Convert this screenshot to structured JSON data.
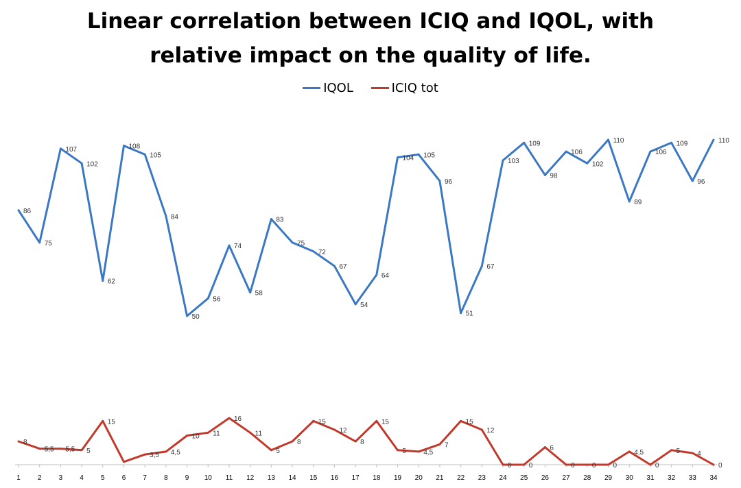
{
  "chart_data": {
    "type": "line",
    "title_line1": "Linear correlation between ICIQ and IQOL, with",
    "title_line2": "relative impact on the quality of life.",
    "categories": [
      "1",
      "2",
      "3",
      "4",
      "5",
      "6",
      "7",
      "8",
      "9",
      "10",
      "11",
      "12",
      "13",
      "14",
      "15",
      "16",
      "17",
      "18",
      "19",
      "20",
      "21",
      "22",
      "23",
      "24",
      "25",
      "26",
      "27",
      "28",
      "29",
      "30",
      "31",
      "32",
      "33",
      "34"
    ],
    "series": [
      {
        "name": "IQOL",
        "color": "#3b78c4",
        "values": [
          86,
          75,
          107,
          102,
          62,
          108,
          105,
          84,
          50,
          56,
          74,
          58,
          83,
          75,
          72,
          67,
          54,
          64,
          104,
          105,
          96,
          51,
          67,
          103,
          109,
          98,
          106,
          102,
          110,
          89,
          106,
          109,
          96,
          110
        ],
        "labels": [
          "86",
          "75",
          "107",
          "102",
          "62",
          "108",
          "105",
          "84",
          "50",
          "56",
          "74",
          "58",
          "83",
          "75",
          "72",
          "67",
          "54",
          "64",
          "104",
          "105",
          "96",
          "51",
          "67",
          "103",
          "109",
          "98",
          "106",
          "102",
          "110",
          "89",
          "106",
          "109",
          "96",
          "110"
        ]
      },
      {
        "name": "ICIQ tot",
        "color": "#c0392b",
        "values": [
          8,
          5.5,
          5.5,
          5,
          15,
          1,
          3.5,
          4.5,
          10,
          11,
          16,
          11,
          5,
          8,
          15,
          12,
          8,
          15,
          5,
          4.5,
          7,
          15,
          12,
          0,
          0,
          6,
          0,
          0,
          0,
          4.5,
          0,
          5,
          4,
          0
        ],
        "labels": [
          "8",
          "5,5",
          "5,5",
          "5",
          "15",
          "",
          "3,5",
          "4,5",
          "10",
          "11",
          "16",
          "11",
          "5",
          "8",
          "15",
          "12",
          "8",
          "15",
          "5",
          "4,5",
          "7",
          "15",
          "12",
          "0",
          "0",
          "6",
          "0",
          "0",
          "0",
          "4,5",
          "0",
          "5",
          "4",
          "0"
        ]
      }
    ],
    "legend_position": "top",
    "grid": false,
    "xlabel": "",
    "ylabel": ""
  }
}
